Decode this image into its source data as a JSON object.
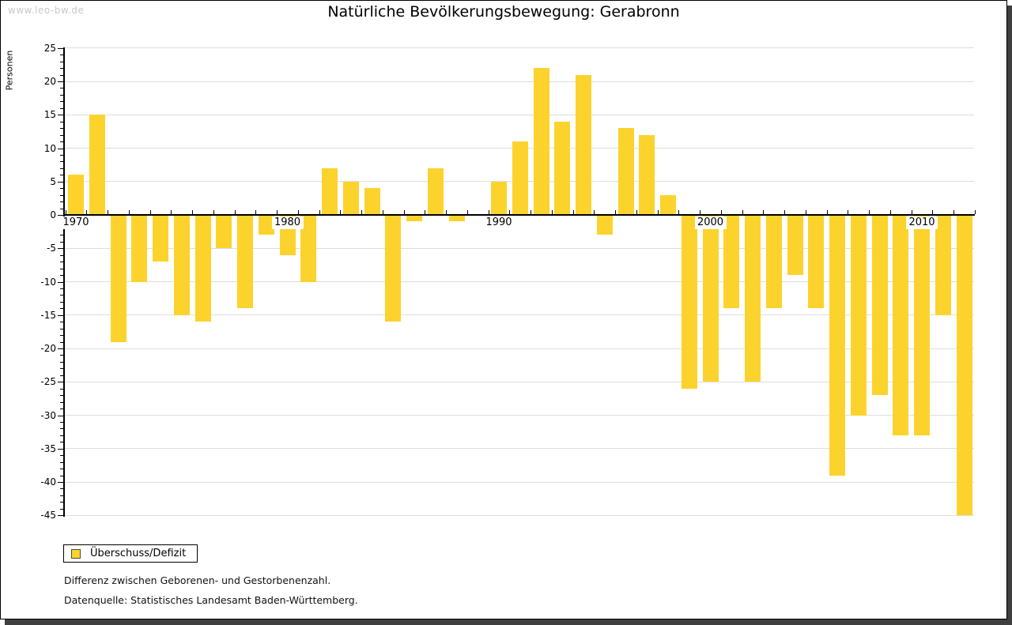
{
  "watermark": "www.leo-bw.de",
  "title": "Natürliche Bevölkerungsbewegung: Gerabronn",
  "chart_data": {
    "type": "bar",
    "title": "Natürliche Bevölkerungsbewegung: Gerabronn",
    "xlabel": "",
    "ylabel": "Personen",
    "ylim": [
      -45,
      25
    ],
    "y_tick_step": 5,
    "y_tick_labels": [
      25,
      20,
      15,
      10,
      5,
      0,
      -5,
      -10,
      -15,
      -20,
      -25,
      -30,
      -35,
      -40,
      -45
    ],
    "x_tick_labels": [
      "1970",
      "1980",
      "1990",
      "2000",
      "2010"
    ],
    "grid": "horizontal-on",
    "legend": {
      "label": "Überschuss/Defizit",
      "position": "bottom-left"
    },
    "series": [
      {
        "name": "Überschuss/Defizit",
        "years": [
          1970,
          1971,
          1972,
          1973,
          1974,
          1975,
          1976,
          1977,
          1978,
          1979,
          1980,
          1981,
          1982,
          1983,
          1984,
          1985,
          1986,
          1987,
          1988,
          1989,
          1990,
          1991,
          1992,
          1993,
          1994,
          1995,
          1996,
          1997,
          1998,
          1999,
          2000,
          2001,
          2002,
          2003,
          2004,
          2005,
          2006,
          2007,
          2008,
          2009,
          2010,
          2011,
          2012
        ],
        "values": [
          6,
          15,
          -19,
          -10,
          -7,
          -15,
          -16,
          -5,
          -14,
          -3,
          -6,
          -10,
          7,
          5,
          4,
          -16,
          -1,
          7,
          -1,
          0,
          5,
          11,
          22,
          14,
          21,
          -3,
          13,
          12,
          3,
          -26,
          -25,
          -14,
          -25,
          -14,
          -9,
          -14,
          -39,
          -30,
          -27,
          -33,
          -33,
          -15,
          -45
        ]
      }
    ]
  },
  "footer": {
    "line1": "Differenz zwischen Geborenen- und Gestorbenenzahl.",
    "line2": "Datenquelle: Statistisches Landesamt Baden-Württemberg."
  },
  "colors": {
    "bar": "#FCD32D",
    "axis": "#000000",
    "grid": "#DDDDDD",
    "watermark": "#C9C9C9",
    "frame_shadow": "#3F3F3F"
  }
}
